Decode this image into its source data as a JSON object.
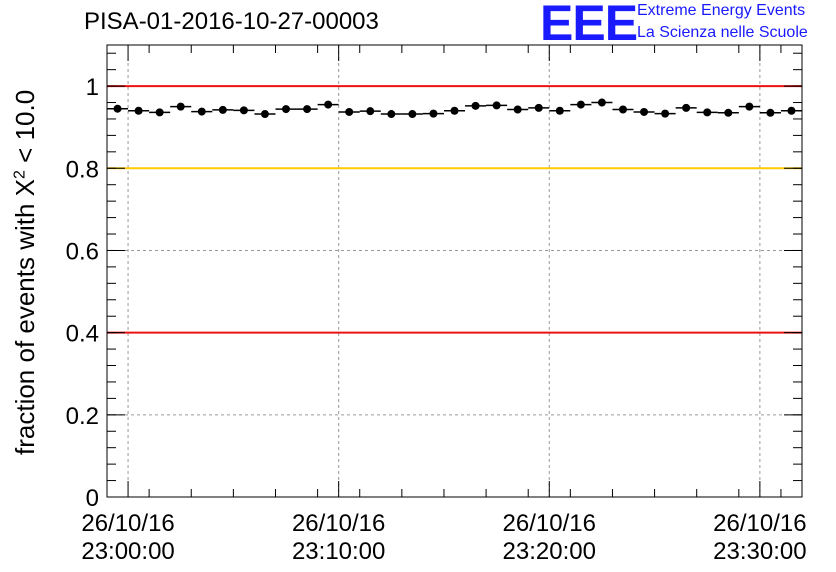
{
  "chart_title": "PISA-01-2016-10-27-00003",
  "logo": {
    "mark": "EEE",
    "line1": "Extreme Energy Events",
    "line2": "La Scienza nelle Scuole"
  },
  "chart_data": {
    "type": "scatter",
    "title": "PISA-01-2016-10-27-00003",
    "ylabel_prefix": "fraction of events with ",
    "ylabel_symbol": "X",
    "ylabel_exponent": "2",
    "ylabel_suffix": " < 10.0",
    "xlabel": "",
    "ylim": [
      0,
      1.1
    ],
    "y_ticks": [
      "0",
      "0.2",
      "0.4",
      "0.6",
      "0.8",
      "1"
    ],
    "y_tick_values": [
      0,
      0.2,
      0.4,
      0.6,
      0.8,
      1.0
    ],
    "x_range_minutes": [
      -1,
      32
    ],
    "x_ticks": [
      {
        "minutes": 0,
        "date": "26/10/16",
        "time": "23:00:00"
      },
      {
        "minutes": 10,
        "date": "26/10/16",
        "time": "23:10:00"
      },
      {
        "minutes": 20,
        "date": "26/10/16",
        "time": "23:20:00"
      },
      {
        "minutes": 30,
        "date": "26/10/16",
        "time": "23:30:00"
      }
    ],
    "grid": true,
    "reference_lines": [
      {
        "y": 1.0,
        "color": "#ee1111"
      },
      {
        "y": 0.8,
        "color": "#ffcc00"
      },
      {
        "y": 0.4,
        "color": "#ee1111"
      }
    ],
    "bin_width_minutes": 1,
    "x_minutes": [
      -0.5,
      0.5,
      1.5,
      2.5,
      3.5,
      4.5,
      5.5,
      6.5,
      7.5,
      8.5,
      9.5,
      10.5,
      11.5,
      12.5,
      13.5,
      14.5,
      15.5,
      16.5,
      17.5,
      18.5,
      19.5,
      20.5,
      21.5,
      22.5,
      23.5,
      24.5,
      25.5,
      26.5,
      27.5,
      28.5,
      29.5,
      30.5,
      31.5
    ],
    "values": [
      0.945,
      0.94,
      0.936,
      0.95,
      0.938,
      0.942,
      0.941,
      0.932,
      0.944,
      0.944,
      0.955,
      0.937,
      0.939,
      0.932,
      0.932,
      0.933,
      0.94,
      0.952,
      0.953,
      0.943,
      0.947,
      0.94,
      0.955,
      0.96,
      0.943,
      0.937,
      0.933,
      0.947,
      0.936,
      0.935,
      0.95,
      0.935,
      0.94
    ],
    "errors": [
      0.004,
      0.004,
      0.004,
      0.004,
      0.004,
      0.004,
      0.004,
      0.004,
      0.004,
      0.004,
      0.004,
      0.004,
      0.004,
      0.004,
      0.004,
      0.004,
      0.004,
      0.004,
      0.004,
      0.004,
      0.004,
      0.004,
      0.004,
      0.004,
      0.004,
      0.004,
      0.004,
      0.004,
      0.004,
      0.004,
      0.004,
      0.004,
      0.004
    ],
    "marker_color": "#000000"
  }
}
